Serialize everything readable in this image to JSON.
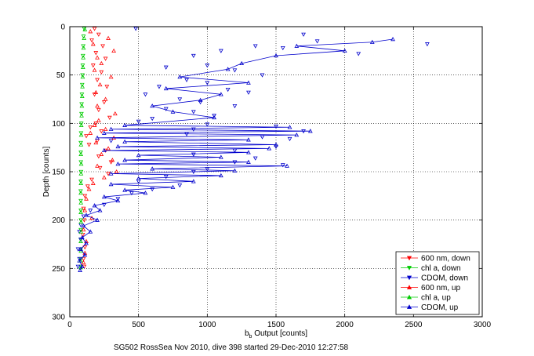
{
  "chart_data": {
    "type": "scatter",
    "title": "",
    "xlabel_main": "b",
    "xlabel_sub": "b",
    "xlabel_rest": " Output [counts]",
    "ylabel": "Depth [counts]",
    "caption": "SG502 RossSea Nov 2010, dive 398 started 29-Dec-2010 12:27:58",
    "xlim": [
      0,
      3000
    ],
    "ylim": [
      0,
      300
    ],
    "y_reversed": true,
    "grid": true,
    "x_ticks": [
      0,
      500,
      1000,
      1500,
      2000,
      2500,
      3000
    ],
    "y_ticks": [
      0,
      50,
      100,
      150,
      200,
      250,
      300
    ],
    "legend_position": "bottom-right",
    "series": [
      {
        "name": "600 nm, down",
        "color": "#ff0000",
        "marker": "triangle-down",
        "connected": false,
        "points": [
          [
            180,
            2
          ],
          [
            210,
            8
          ],
          [
            160,
            14
          ],
          [
            240,
            20
          ],
          [
            190,
            27
          ],
          [
            260,
            33
          ],
          [
            170,
            40
          ],
          [
            230,
            47
          ],
          [
            200,
            55
          ],
          [
            270,
            62
          ],
          [
            180,
            70
          ],
          [
            250,
            78
          ],
          [
            210,
            86
          ],
          [
            290,
            94
          ],
          [
            190,
            100
          ],
          [
            150,
            104
          ],
          [
            230,
            108
          ],
          [
            120,
            113
          ],
          [
            200,
            118
          ],
          [
            140,
            122
          ],
          [
            260,
            128
          ],
          [
            210,
            134
          ],
          [
            300,
            140
          ],
          [
            220,
            146
          ],
          [
            280,
            152
          ],
          [
            160,
            158
          ],
          [
            130,
            165
          ],
          [
            110,
            175
          ],
          [
            100,
            188
          ],
          [
            105,
            200
          ],
          [
            95,
            215
          ],
          [
            110,
            228
          ],
          [
            100,
            240
          ],
          [
            105,
            248
          ]
        ]
      },
      {
        "name": "chl a, down",
        "color": "#00cc00",
        "marker": "triangle-down",
        "connected": false,
        "points": [
          [
            105,
            2
          ],
          [
            100,
            10
          ],
          [
            98,
            20
          ],
          [
            96,
            30
          ],
          [
            94,
            40
          ],
          [
            92,
            50
          ],
          [
            90,
            60
          ],
          [
            88,
            70
          ],
          [
            86,
            80
          ],
          [
            85,
            90
          ],
          [
            84,
            100
          ],
          [
            82,
            110
          ],
          [
            80,
            120
          ],
          [
            80,
            130
          ],
          [
            81,
            140
          ],
          [
            82,
            150
          ],
          [
            80,
            160
          ],
          [
            79,
            170
          ],
          [
            80,
            180
          ],
          [
            80,
            190
          ],
          [
            81,
            200
          ],
          [
            80,
            210
          ],
          [
            79,
            220
          ],
          [
            80,
            230
          ],
          [
            80,
            240
          ],
          [
            80,
            248
          ]
        ]
      },
      {
        "name": "CDOM, down",
        "color": "#0000cc",
        "marker": "triangle-down",
        "connected": false,
        "points": [
          [
            480,
            2
          ],
          [
            1700,
            8
          ],
          [
            2600,
            18
          ],
          [
            1800,
            15
          ],
          [
            1350,
            20
          ],
          [
            1550,
            22
          ],
          [
            1100,
            25
          ],
          [
            900,
            30
          ],
          [
            2100,
            28
          ],
          [
            1000,
            40
          ],
          [
            700,
            42
          ],
          [
            1200,
            45
          ],
          [
            1400,
            50
          ],
          [
            850,
            55
          ],
          [
            1000,
            58
          ],
          [
            650,
            62
          ],
          [
            1150,
            65
          ],
          [
            1300,
            68
          ],
          [
            550,
            70
          ],
          [
            800,
            75
          ],
          [
            950,
            78
          ],
          [
            1200,
            82
          ],
          [
            700,
            85
          ],
          [
            900,
            88
          ],
          [
            1050,
            92
          ],
          [
            600,
            95
          ],
          [
            500,
            98
          ],
          [
            1000,
            101
          ],
          [
            1500,
            103
          ],
          [
            900,
            106
          ],
          [
            1700,
            108
          ],
          [
            850,
            111
          ],
          [
            1400,
            114
          ],
          [
            1600,
            116
          ],
          [
            300,
            118
          ],
          [
            1500,
            124
          ],
          [
            1200,
            128
          ],
          [
            900,
            132
          ],
          [
            1350,
            136
          ],
          [
            1200,
            140
          ],
          [
            1550,
            143
          ],
          [
            1000,
            147
          ],
          [
            900,
            150
          ],
          [
            700,
            155
          ],
          [
            500,
            160
          ],
          [
            800,
            164
          ],
          [
            600,
            168
          ],
          [
            450,
            172
          ],
          [
            350,
            178
          ],
          [
            250,
            184
          ],
          [
            150,
            190
          ],
          [
            100,
            196
          ],
          [
            80,
            205
          ],
          [
            70,
            212
          ],
          [
            80,
            220
          ],
          [
            60,
            230
          ],
          [
            70,
            240
          ],
          [
            60,
            248
          ]
        ]
      },
      {
        "name": "600 nm, up",
        "color": "#ff0000",
        "marker": "triangle-up",
        "connected": false,
        "points": [
          [
            150,
            5
          ],
          [
            280,
            12
          ],
          [
            170,
            18
          ],
          [
            320,
            25
          ],
          [
            200,
            32
          ],
          [
            230,
            38
          ],
          [
            180,
            45
          ],
          [
            300,
            52
          ],
          [
            220,
            60
          ],
          [
            190,
            68
          ],
          [
            260,
            75
          ],
          [
            200,
            82
          ],
          [
            330,
            90
          ],
          [
            210,
            97
          ],
          [
            180,
            102
          ],
          [
            260,
            106
          ],
          [
            150,
            110
          ],
          [
            320,
            115
          ],
          [
            190,
            120
          ],
          [
            280,
            126
          ],
          [
            230,
            132
          ],
          [
            310,
            138
          ],
          [
            200,
            144
          ],
          [
            340,
            150
          ],
          [
            250,
            156
          ],
          [
            170,
            162
          ],
          [
            140,
            168
          ],
          [
            120,
            178
          ],
          [
            110,
            190
          ],
          [
            160,
            198
          ],
          [
            100,
            210
          ],
          [
            120,
            222
          ],
          [
            110,
            234
          ],
          [
            100,
            244
          ]
        ]
      },
      {
        "name": "chl a, up",
        "color": "#00cc00",
        "marker": "triangle-up",
        "connected": false,
        "points": [
          [
            110,
            3
          ],
          [
            104,
            12
          ],
          [
            100,
            22
          ],
          [
            98,
            32
          ],
          [
            96,
            42
          ],
          [
            94,
            52
          ],
          [
            92,
            62
          ],
          [
            90,
            72
          ],
          [
            88,
            82
          ],
          [
            86,
            92
          ],
          [
            84,
            102
          ],
          [
            83,
            112
          ],
          [
            82,
            122
          ],
          [
            81,
            132
          ],
          [
            83,
            142
          ],
          [
            82,
            152
          ],
          [
            81,
            162
          ],
          [
            80,
            172
          ],
          [
            81,
            182
          ],
          [
            80,
            192
          ],
          [
            82,
            202
          ],
          [
            81,
            212
          ],
          [
            80,
            222
          ],
          [
            81,
            232
          ],
          [
            80,
            242
          ],
          [
            80,
            249
          ]
        ]
      },
      {
        "name": "CDOM, up",
        "color": "#0000cc",
        "marker": "triangle-up",
        "connected": true,
        "points": [
          [
            2350,
            13
          ],
          [
            2200,
            16
          ],
          [
            1650,
            20
          ],
          [
            2000,
            25
          ],
          [
            1500,
            30
          ],
          [
            1250,
            38
          ],
          [
            1150,
            44
          ],
          [
            800,
            52
          ],
          [
            1300,
            58
          ],
          [
            700,
            64
          ],
          [
            1100,
            70
          ],
          [
            950,
            76
          ],
          [
            600,
            82
          ],
          [
            750,
            88
          ],
          [
            1050,
            94
          ],
          [
            400,
            102
          ],
          [
            1600,
            104
          ],
          [
            300,
            106
          ],
          [
            1750,
            108
          ],
          [
            250,
            110
          ],
          [
            1650,
            112
          ],
          [
            200,
            115
          ],
          [
            1300,
            117
          ],
          [
            400,
            119
          ],
          [
            1500,
            122
          ],
          [
            350,
            124
          ],
          [
            1450,
            126
          ],
          [
            250,
            128
          ],
          [
            1300,
            130
          ],
          [
            500,
            133
          ],
          [
            1100,
            135
          ],
          [
            400,
            138
          ],
          [
            1300,
            140
          ],
          [
            350,
            142
          ],
          [
            1580,
            144
          ],
          [
            600,
            147
          ],
          [
            1200,
            149
          ],
          [
            300,
            152
          ],
          [
            1100,
            154
          ],
          [
            500,
            157
          ],
          [
            900,
            160
          ],
          [
            300,
            163
          ],
          [
            750,
            166
          ],
          [
            400,
            169
          ],
          [
            550,
            172
          ],
          [
            250,
            176
          ],
          [
            350,
            180
          ],
          [
            180,
            185
          ],
          [
            220,
            190
          ],
          [
            120,
            195
          ],
          [
            200,
            200
          ],
          [
            100,
            206
          ],
          [
            150,
            212
          ],
          [
            90,
            218
          ],
          [
            120,
            224
          ],
          [
            80,
            230
          ],
          [
            110,
            236
          ],
          [
            70,
            242
          ],
          [
            90,
            248
          ],
          [
            75,
            252
          ]
        ]
      }
    ]
  }
}
